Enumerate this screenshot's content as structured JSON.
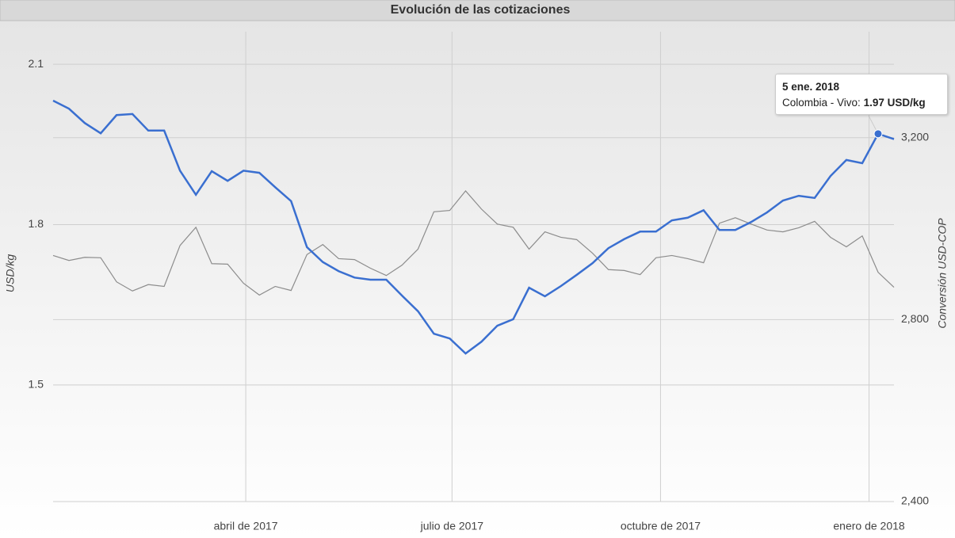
{
  "chart_data": {
    "type": "line",
    "title": "Evolución de las cotizaciones",
    "ylabel": "USD/kg",
    "y2label": "Conversión USD-COP",
    "x": [
      "2017-01-06",
      "2017-01-13",
      "2017-01-20",
      "2017-01-27",
      "2017-02-03",
      "2017-02-10",
      "2017-02-17",
      "2017-02-24",
      "2017-03-03",
      "2017-03-10",
      "2017-03-17",
      "2017-03-24",
      "2017-03-31",
      "2017-04-07",
      "2017-04-14",
      "2017-04-21",
      "2017-04-28",
      "2017-05-05",
      "2017-05-12",
      "2017-05-19",
      "2017-05-26",
      "2017-06-02",
      "2017-06-09",
      "2017-06-16",
      "2017-06-23",
      "2017-06-30",
      "2017-07-07",
      "2017-07-14",
      "2017-07-21",
      "2017-07-28",
      "2017-08-04",
      "2017-08-11",
      "2017-08-18",
      "2017-08-25",
      "2017-09-01",
      "2017-09-08",
      "2017-09-15",
      "2017-09-22",
      "2017-09-29",
      "2017-10-06",
      "2017-10-13",
      "2017-10-20",
      "2017-10-27",
      "2017-11-03",
      "2017-11-10",
      "2017-11-17",
      "2017-11-24",
      "2017-12-01",
      "2017-12-08",
      "2017-12-15",
      "2017-12-22",
      "2017-12-29",
      "2018-01-05",
      "2018-01-12"
    ],
    "series": [
      {
        "name": "Colombia - Vivo",
        "color": "#3a6fd0",
        "axis": "y",
        "values": [
          2.032,
          2.017,
          1.99,
          1.971,
          2.005,
          2.007,
          1.976,
          1.976,
          1.901,
          1.856,
          1.9,
          1.882,
          1.901,
          1.897,
          1.87,
          1.844,
          1.758,
          1.73,
          1.713,
          1.701,
          1.697,
          1.697,
          1.667,
          1.638,
          1.596,
          1.587,
          1.559,
          1.581,
          1.611,
          1.623,
          1.682,
          1.666,
          1.685,
          1.706,
          1.728,
          1.756,
          1.773,
          1.787,
          1.787,
          1.808,
          1.813,
          1.827,
          1.79,
          1.79,
          1.805,
          1.823,
          1.845,
          1.854,
          1.85,
          1.891,
          1.921,
          1.915,
          1.97,
          1.96
        ]
      },
      {
        "color": "#8c8c8c",
        "axis": "y2",
        "values": [
          2941,
          2930,
          2937,
          2936,
          2883,
          2863,
          2877,
          2873,
          2963,
          3003,
          2923,
          2922,
          2880,
          2854,
          2873,
          2864,
          2943,
          2965,
          2934,
          2932,
          2913,
          2897,
          2920,
          2955,
          3037,
          3040,
          3083,
          3043,
          3010,
          3003,
          2955,
          2993,
          2981,
          2976,
          2946,
          2910,
          2908,
          2899,
          2936,
          2941,
          2934,
          2925,
          3012,
          3024,
          3010,
          2997,
          2993,
          3002,
          3016,
          2981,
          2960,
          2984,
          2904,
          2871
        ]
      }
    ],
    "xlim": [
      "2017-01-06",
      "2018-01-12"
    ],
    "xticks": [
      {
        "value": "2017-04-01",
        "label": "abril de 2017"
      },
      {
        "value": "2017-07-01",
        "label": "julio de 2017"
      },
      {
        "value": "2017-10-01",
        "label": "octubre de 2017"
      },
      {
        "value": "2018-01-01",
        "label": "enero de 2018"
      }
    ],
    "ylim": [
      1.282,
      2.161
    ],
    "yticks": [
      1.5,
      1.8,
      2.1
    ],
    "y2lim": [
      2400,
      3433
    ],
    "y2ticks": [
      {
        "value": 2400,
        "label": "2,400"
      },
      {
        "value": 2800,
        "label": "2,800"
      },
      {
        "value": 3200,
        "label": "3,200"
      }
    ],
    "grid": true,
    "tooltip": {
      "index": 52,
      "date": "5 ene. 2018",
      "value_label": "1.97 USD/kg"
    }
  }
}
